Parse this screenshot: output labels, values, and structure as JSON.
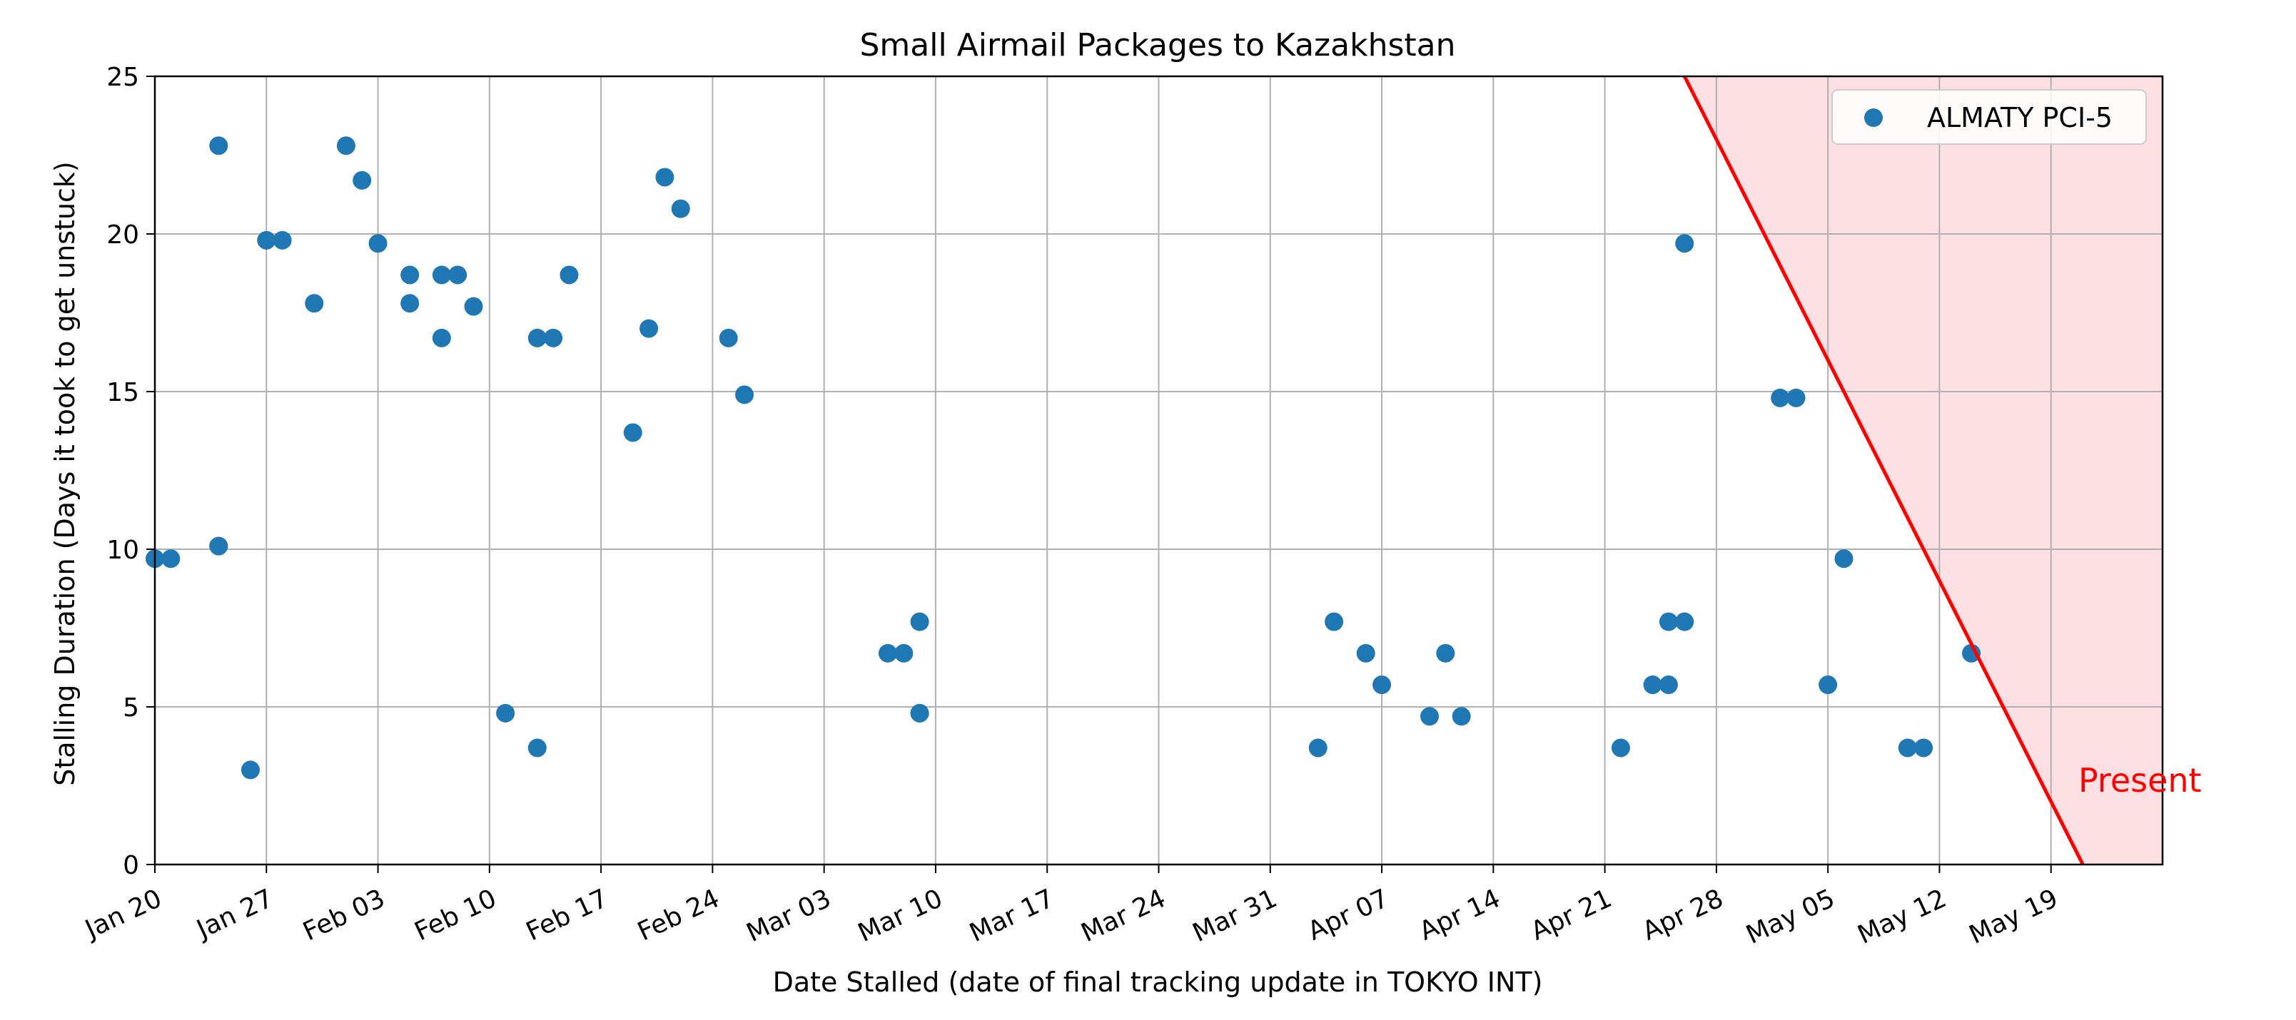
{
  "chart_data": {
    "type": "scatter",
    "title": "Small Airmail Packages to Kazakhstan",
    "xlabel": "Date Stalled (date of final tracking update in TOKYO INT)",
    "ylabel": "Stalling Duration (Days it took to get unstuck)",
    "x_axis_type": "date",
    "xlim": [
      "2020-01-20",
      "2020-05-25"
    ],
    "ylim": [
      0,
      25
    ],
    "x_ticks": [
      "Jan 20",
      "Jan 27",
      "Feb 03",
      "Feb 10",
      "Feb 17",
      "Feb 24",
      "Mar 03",
      "Mar 10",
      "Mar 17",
      "Mar 24",
      "Mar 31",
      "Apr 07",
      "Apr 14",
      "Apr 21",
      "Apr 28",
      "May 05",
      "May 12",
      "May 19"
    ],
    "y_ticks": [
      0,
      5,
      10,
      15,
      20,
      25
    ],
    "grid": true,
    "legend_position": "top-right",
    "series": [
      {
        "name": "ALMATY PCI-5",
        "color": "#1f77b4",
        "points": [
          [
            "2020-01-20",
            9.7
          ],
          [
            "2020-01-21",
            9.7
          ],
          [
            "2020-01-24",
            10.1
          ],
          [
            "2020-01-24",
            10.1
          ],
          [
            "2020-01-24",
            22.8
          ],
          [
            "2020-01-26",
            3.0
          ],
          [
            "2020-01-27",
            19.8
          ],
          [
            "2020-01-28",
            19.8
          ],
          [
            "2020-01-30",
            17.8
          ],
          [
            "2020-02-01",
            22.8
          ],
          [
            "2020-02-02",
            21.7
          ],
          [
            "2020-02-03",
            19.7
          ],
          [
            "2020-02-05",
            18.7
          ],
          [
            "2020-02-05",
            17.8
          ],
          [
            "2020-02-07",
            16.7
          ],
          [
            "2020-02-07",
            18.7
          ],
          [
            "2020-02-08",
            18.7
          ],
          [
            "2020-02-09",
            17.7
          ],
          [
            "2020-02-11",
            4.8
          ],
          [
            "2020-02-13",
            3.7
          ],
          [
            "2020-02-13",
            16.7
          ],
          [
            "2020-02-14",
            16.7
          ],
          [
            "2020-02-15",
            18.7
          ],
          [
            "2020-02-19",
            13.7
          ],
          [
            "2020-02-20",
            17.0
          ],
          [
            "2020-02-21",
            21.8
          ],
          [
            "2020-02-22",
            20.8
          ],
          [
            "2020-02-25",
            16.7
          ],
          [
            "2020-02-26",
            14.9
          ],
          [
            "2020-03-06",
            6.7
          ],
          [
            "2020-03-07",
            6.7
          ],
          [
            "2020-03-08",
            4.8
          ],
          [
            "2020-03-08",
            4.8
          ],
          [
            "2020-03-08",
            7.7
          ],
          [
            "2020-04-02",
            3.7
          ],
          [
            "2020-04-03",
            7.7
          ],
          [
            "2020-04-05",
            6.7
          ],
          [
            "2020-04-06",
            5.7
          ],
          [
            "2020-04-09",
            4.7
          ],
          [
            "2020-04-10",
            6.7
          ],
          [
            "2020-04-11",
            4.7
          ],
          [
            "2020-04-21",
            3.7
          ],
          [
            "2020-04-23",
            5.7
          ],
          [
            "2020-04-24",
            5.7
          ],
          [
            "2020-04-24",
            7.7
          ],
          [
            "2020-04-25",
            7.7
          ],
          [
            "2020-04-25",
            19.7
          ],
          [
            "2020-05-01",
            14.8
          ],
          [
            "2020-05-02",
            14.8
          ],
          [
            "2020-05-04",
            5.7
          ],
          [
            "2020-05-05",
            9.7
          ],
          [
            "2020-05-09",
            3.7
          ],
          [
            "2020-05-10",
            3.7
          ],
          [
            "2020-05-13",
            6.7
          ]
        ]
      }
    ],
    "annotations": [
      {
        "kind": "line",
        "color": "#ff0000",
        "from": [
          "2020-04-25",
          25
        ],
        "to": [
          "2020-05-20",
          0
        ],
        "fill": "#fde0e3",
        "fill_side": "right"
      },
      {
        "kind": "text",
        "text": "Present",
        "color": "#ff0000",
        "at": [
          "2020-05-20",
          2.6
        ]
      }
    ]
  }
}
